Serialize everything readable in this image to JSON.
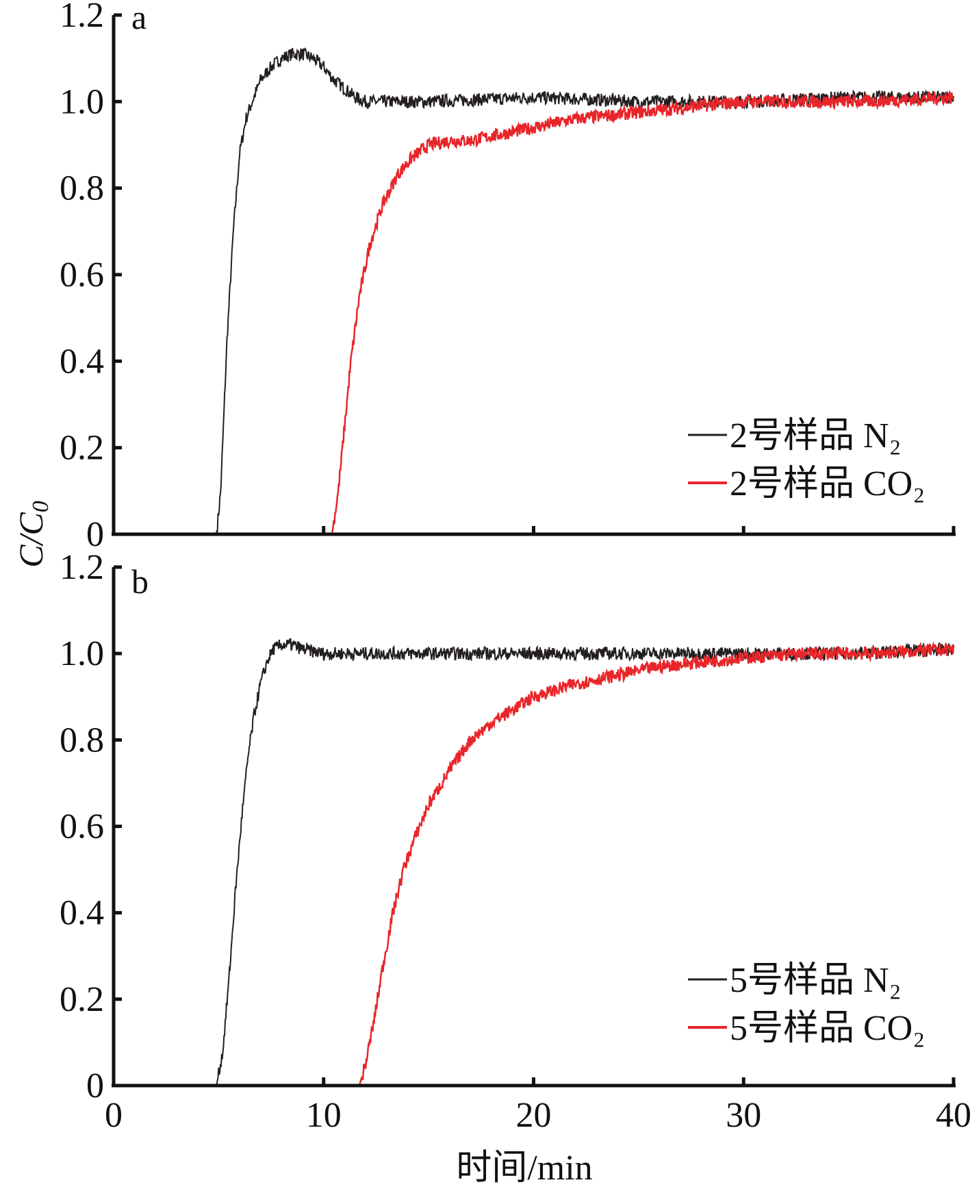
{
  "chart_data": [
    {
      "type": "line",
      "panel_label": "a",
      "xlabel": "时间/min",
      "ylabel": "C/C0",
      "xlim": [
        0,
        40
      ],
      "ylim": [
        0,
        1.2
      ],
      "xticks": [
        "0",
        "10",
        "20",
        "30",
        "40"
      ],
      "yticks": [
        "0",
        "0.2",
        "0.4",
        "0.6",
        "0.8",
        "1.0",
        "1.2"
      ],
      "legend_position": "bottom-right",
      "series": [
        {
          "name": "2号样品 N₂",
          "color": "#231f20",
          "x": [
            0,
            4.9,
            5.1,
            5.4,
            5.7,
            6.0,
            6.3,
            6.6,
            7.0,
            7.5,
            8.0,
            8.5,
            9.0,
            9.5,
            10.0,
            10.5,
            11.0,
            11.5,
            12.0,
            13.0,
            15.0,
            20.0,
            25.0,
            30.0,
            35.0,
            40.0
          ],
          "y": [
            0,
            0,
            0.1,
            0.45,
            0.7,
            0.88,
            0.96,
            1.0,
            1.05,
            1.08,
            1.1,
            1.11,
            1.11,
            1.1,
            1.08,
            1.05,
            1.03,
            1.01,
            1.0,
            1.0,
            1.0,
            1.01,
            1.0,
            1.0,
            1.01,
            1.01
          ]
        },
        {
          "name": "2号样品 CO₂",
          "color": "#e8262a",
          "x": [
            0,
            10.4,
            10.7,
            11.0,
            11.3,
            11.7,
            12.2,
            12.8,
            13.5,
            14.2,
            15.0,
            16.0,
            17.0,
            18.0,
            20.0,
            22.0,
            24.0,
            26.0,
            28.0,
            30.0,
            33.0,
            36.0,
            40.0
          ],
          "y": [
            0,
            0,
            0.1,
            0.25,
            0.4,
            0.55,
            0.67,
            0.76,
            0.83,
            0.87,
            0.9,
            0.91,
            0.91,
            0.92,
            0.94,
            0.96,
            0.97,
            0.98,
            0.99,
            1.0,
            1.0,
            1.0,
            1.01
          ]
        }
      ]
    },
    {
      "type": "line",
      "panel_label": "b",
      "xlabel": "时间/min",
      "ylabel": "C/C0",
      "xlim": [
        0,
        40
      ],
      "ylim": [
        0,
        1.2
      ],
      "xticks": [
        "0",
        "10",
        "20",
        "30",
        "40"
      ],
      "yticks": [
        "0",
        "0.2",
        "0.4",
        "0.6",
        "0.8",
        "1.0",
        "1.2"
      ],
      "legend_position": "bottom-right",
      "series": [
        {
          "name": "5号样品 N₂",
          "color": "#231f20",
          "x": [
            0,
            4.9,
            5.2,
            5.5,
            5.8,
            6.1,
            6.4,
            6.7,
            7.0,
            7.3,
            7.6,
            8.0,
            8.5,
            9.0,
            10.0,
            15.0,
            20.0,
            25.0,
            30.0,
            35.0,
            40.0
          ],
          "y": [
            0,
            0,
            0.08,
            0.25,
            0.45,
            0.62,
            0.76,
            0.86,
            0.93,
            0.98,
            1.01,
            1.02,
            1.02,
            1.01,
            1.0,
            1.0,
            1.0,
            1.0,
            1.0,
            1.0,
            1.01
          ]
        },
        {
          "name": "5号样品 CO₂",
          "color": "#e8262a",
          "x": [
            0,
            11.7,
            12.0,
            12.4,
            12.8,
            13.3,
            13.8,
            14.4,
            15.0,
            16.0,
            17.0,
            18.0,
            19.0,
            20.0,
            22.0,
            24.0,
            26.0,
            28.0,
            30.0,
            33.0,
            36.0,
            40.0
          ],
          "y": [
            0,
            0,
            0.05,
            0.15,
            0.27,
            0.4,
            0.5,
            0.58,
            0.65,
            0.73,
            0.8,
            0.84,
            0.87,
            0.9,
            0.93,
            0.95,
            0.97,
            0.98,
            0.99,
            1.0,
            1.0,
            1.01
          ]
        }
      ]
    }
  ]
}
